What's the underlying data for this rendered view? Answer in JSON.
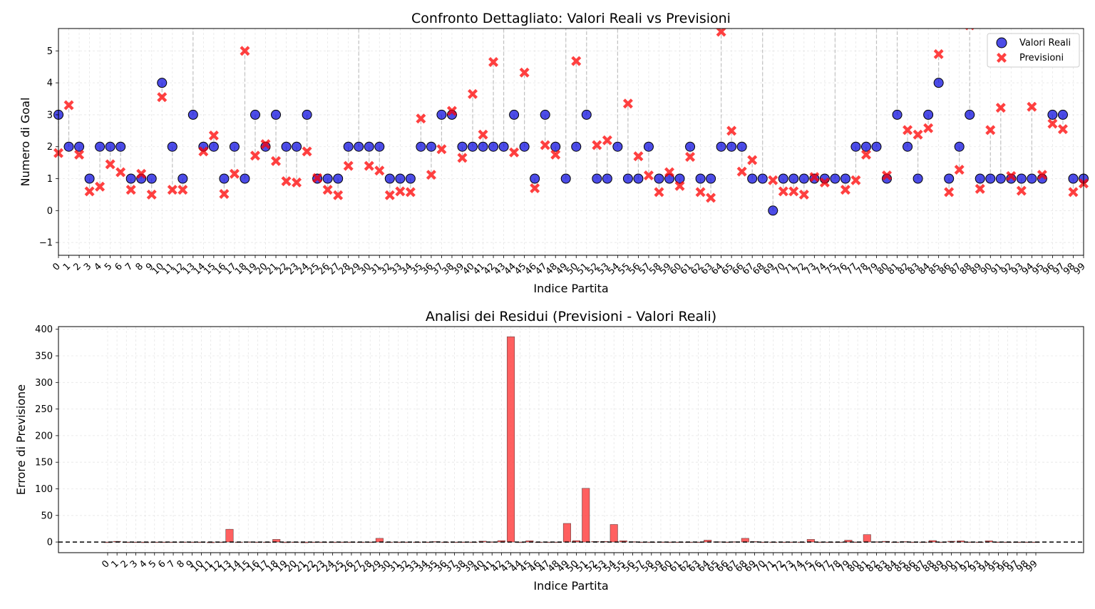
{
  "chart_data": [
    {
      "type": "scatter",
      "title": "Confronto Dettagliato: Valori Reali vs Previsioni",
      "xlabel": "Indice Partita",
      "ylabel": "Numero di Goal",
      "xlim": [
        0,
        99
      ],
      "ylim": [
        -1.4,
        5.7
      ],
      "yticks": [
        -1,
        0,
        1,
        2,
        3,
        4,
        5
      ],
      "yticklabels": [
        "−1",
        "0",
        "1",
        "2",
        "3",
        "4",
        "5"
      ],
      "grid": true,
      "legend_position": "top-right",
      "x": [
        0,
        1,
        2,
        3,
        4,
        5,
        6,
        7,
        8,
        9,
        10,
        11,
        12,
        13,
        14,
        15,
        16,
        17,
        18,
        19,
        20,
        21,
        22,
        23,
        24,
        25,
        26,
        27,
        28,
        29,
        30,
        31,
        32,
        33,
        34,
        35,
        36,
        37,
        38,
        39,
        40,
        41,
        42,
        43,
        44,
        45,
        46,
        47,
        48,
        49,
        50,
        51,
        52,
        53,
        54,
        55,
        56,
        57,
        58,
        59,
        60,
        61,
        62,
        63,
        64,
        65,
        66,
        67,
        68,
        69,
        70,
        71,
        72,
        73,
        74,
        75,
        76,
        77,
        78,
        79,
        80,
        81,
        82,
        83,
        84,
        85,
        86,
        87,
        88,
        89,
        90,
        91,
        92,
        93,
        94,
        95,
        96,
        97,
        98,
        99
      ],
      "series": [
        {
          "name": "Valori Reali",
          "color": "#0000dd",
          "marker": "circle",
          "values": [
            3,
            2,
            2,
            1,
            2,
            2,
            2,
            1,
            1,
            1,
            4,
            2,
            1,
            3,
            2,
            2,
            1,
            2,
            1,
            3,
            2,
            3,
            2,
            2,
            3,
            1,
            1,
            1,
            2,
            2,
            2,
            2,
            1,
            1,
            1,
            2,
            2,
            3,
            3,
            2,
            2,
            2,
            2,
            2,
            3,
            2,
            1,
            3,
            2,
            1,
            2,
            3,
            1,
            1,
            2,
            1,
            1,
            2,
            1,
            1,
            1,
            2,
            1,
            1,
            2,
            2,
            2,
            1,
            1,
            0,
            1,
            1,
            1,
            1,
            1,
            1,
            1,
            2,
            2,
            2,
            1,
            3,
            2,
            1,
            3,
            4,
            1,
            2,
            3,
            1,
            1,
            1,
            1,
            1,
            1,
            1,
            3,
            3,
            1,
            1
          ]
        },
        {
          "name": "Previsioni",
          "color": "#ff0000",
          "marker": "x",
          "values": [
            1.8,
            3.3,
            1.75,
            0.6,
            0.75,
            1.45,
            1.2,
            0.65,
            1.15,
            0.5,
            3.55,
            0.65,
            0.65,
            6.0,
            1.85,
            2.35,
            0.52,
            1.15,
            5.0,
            1.72,
            2.08,
            1.55,
            0.92,
            0.88,
            1.85,
            1.02,
            0.65,
            0.48,
            1.4,
            6.0,
            1.4,
            1.25,
            0.48,
            0.6,
            0.58,
            2.88,
            1.12,
            1.92,
            3.12,
            1.65,
            3.65,
            2.38,
            4.65,
            6.0,
            1.82,
            4.32,
            0.7,
            2.05,
            1.75,
            6.0,
            4.68,
            6.0,
            2.05,
            2.2,
            6.0,
            3.35,
            1.7,
            1.1,
            0.58,
            1.2,
            0.77,
            1.68,
            0.58,
            0.4,
            5.6,
            2.5,
            1.22,
            1.58,
            6.0,
            0.95,
            0.6,
            0.6,
            0.5,
            1.05,
            0.88,
            6.0,
            0.65,
            0.95,
            1.75,
            6.0,
            1.1,
            6.0,
            2.52,
            2.38,
            2.58,
            4.9,
            0.58,
            1.28,
            5.8,
            0.68,
            2.52,
            3.22,
            1.08,
            0.62,
            3.25,
            1.12,
            2.72,
            2.55,
            0.58,
            0.85
          ]
        }
      ]
    },
    {
      "type": "bar",
      "title": "Analisi dei Residui (Previsioni - Valori Reali)",
      "xlabel": "Indice Partita",
      "ylabel": "Errore di Previsione",
      "ylim": [
        -20,
        405
      ],
      "yticks": [
        0,
        50,
        100,
        150,
        200,
        250,
        300,
        350,
        400
      ],
      "grid": true,
      "zero_line": "dashed black",
      "color": "#ff4444",
      "categories": [
        0,
        1,
        2,
        3,
        4,
        5,
        6,
        7,
        8,
        9,
        10,
        11,
        12,
        13,
        14,
        15,
        16,
        17,
        18,
        19,
        20,
        21,
        22,
        23,
        24,
        25,
        26,
        27,
        28,
        29,
        30,
        31,
        32,
        33,
        34,
        35,
        36,
        37,
        38,
        39,
        40,
        41,
        42,
        43,
        44,
        45,
        46,
        47,
        48,
        49,
        50,
        51,
        52,
        53,
        54,
        55,
        56,
        57,
        58,
        59,
        60,
        61,
        62,
        63,
        64,
        65,
        66,
        67,
        68,
        69,
        70,
        71,
        72,
        73,
        74,
        75,
        76,
        77,
        78,
        79,
        80,
        81,
        82,
        83,
        84,
        85,
        86,
        87,
        88,
        89,
        90,
        91,
        92,
        93,
        94,
        95,
        96,
        97,
        98,
        99
      ],
      "values": [
        -1.2,
        1.3,
        -0.25,
        -0.4,
        -1.25,
        -0.55,
        -0.8,
        -0.35,
        0.15,
        -0.5,
        -0.45,
        -1.35,
        -0.35,
        24,
        -0.15,
        0.35,
        -0.48,
        -0.85,
        5,
        -1.28,
        0.08,
        -1.45,
        -1.08,
        -1.12,
        -1.15,
        0.02,
        -0.35,
        -0.52,
        -0.6,
        7,
        -0.6,
        -0.75,
        -0.52,
        -0.4,
        -0.42,
        0.88,
        -0.88,
        -1.08,
        0.12,
        -0.35,
        1.65,
        0.38,
        2.65,
        386,
        -1.18,
        2.32,
        -0.3,
        -0.95,
        -0.25,
        35,
        2.68,
        101,
        1.05,
        1.2,
        33,
        2.35,
        0.7,
        -0.9,
        -0.42,
        0.2,
        -0.23,
        -0.32,
        -0.42,
        -0.6,
        3.6,
        0.5,
        -0.78,
        0.58,
        7,
        0.95,
        -0.4,
        -0.4,
        -0.5,
        0.05,
        -0.12,
        5,
        -0.35,
        -1.05,
        -0.25,
        3.5,
        0.1,
        14,
        0.52,
        1.38,
        -0.42,
        0.9,
        -0.42,
        -0.72,
        2.8,
        -0.32,
        1.52,
        2.22,
        0.08,
        -0.38,
        2.25,
        0.12,
        -0.28,
        -0.45,
        -0.42,
        -0.15
      ]
    }
  ]
}
